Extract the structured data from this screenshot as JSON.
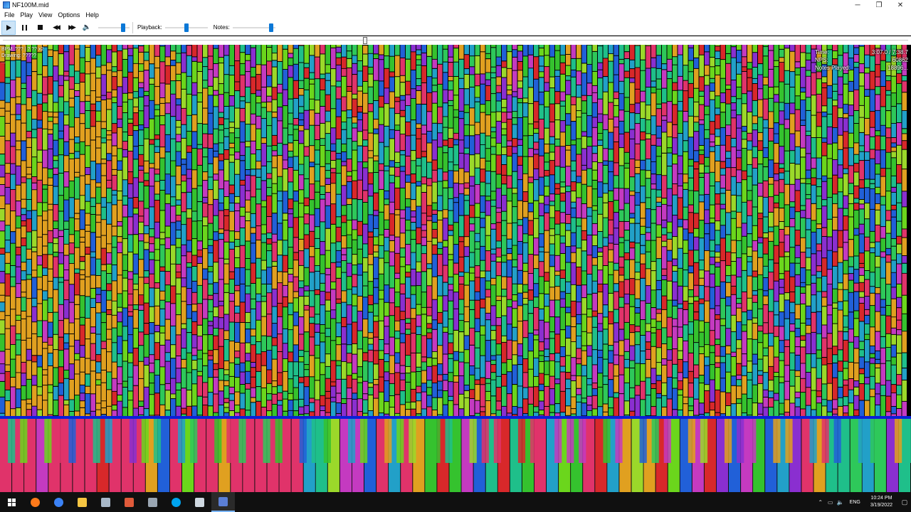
{
  "window": {
    "title": "NF100M.mid",
    "controls": {
      "minimize": "─",
      "restore": "❐",
      "close": "✕"
    }
  },
  "menu": [
    "File",
    "Play",
    "View",
    "Options",
    "Help"
  ],
  "toolbar": {
    "volume_level": 0.85,
    "playback_label": "Playback:",
    "playback_level": 0.5,
    "notes_label": "Notes:",
    "notes_level": 0.95
  },
  "seek": {
    "progress": 0.4
  },
  "stats_left": {
    "line1": "BPM: ???  | ? ??  x2",
    "line2": "Drawing: ?????",
    "line3": "..."
  },
  "stats_right": [
    {
      "label": "Time:",
      "value": "3:07.0 / 7:38.7"
    },
    {
      "label": "NPS:",
      "value": "60862"
    },
    {
      "label": "Notes Played:",
      "value": "18896..."
    }
  ],
  "taskbar": {
    "apps": [
      {
        "name": "start-icon"
      },
      {
        "name": "firefox-icon",
        "color": "#ff7a1a"
      },
      {
        "name": "chrome-icon",
        "color": "#3b82f6"
      },
      {
        "name": "file-explorer-icon",
        "color": "#f5c542"
      },
      {
        "name": "app-icon-4",
        "color": "#a8b8c8"
      },
      {
        "name": "app-icon-5",
        "color": "#e05a3a"
      },
      {
        "name": "app-icon-6",
        "color": "#9aa6b2"
      },
      {
        "name": "skype-icon",
        "color": "#00a4ef"
      },
      {
        "name": "app-icon-8",
        "color": "#cfd8e0"
      },
      {
        "name": "piano-from-above-icon",
        "color": "#5b7fd6",
        "active": true
      }
    ],
    "tray": {
      "language": "ENG",
      "time": "10:24 PM",
      "date": "3/19/2022"
    }
  },
  "colors": {
    "note_palette": [
      "#35c22e",
      "#6bd61c",
      "#1fbf8a",
      "#22a0c8",
      "#2160d8",
      "#8a2fd0",
      "#c43ac0",
      "#e0336a",
      "#d8282a",
      "#e0a020",
      "#9bd82a",
      "#2ec85a"
    ],
    "divider": "#0a1fd8"
  }
}
